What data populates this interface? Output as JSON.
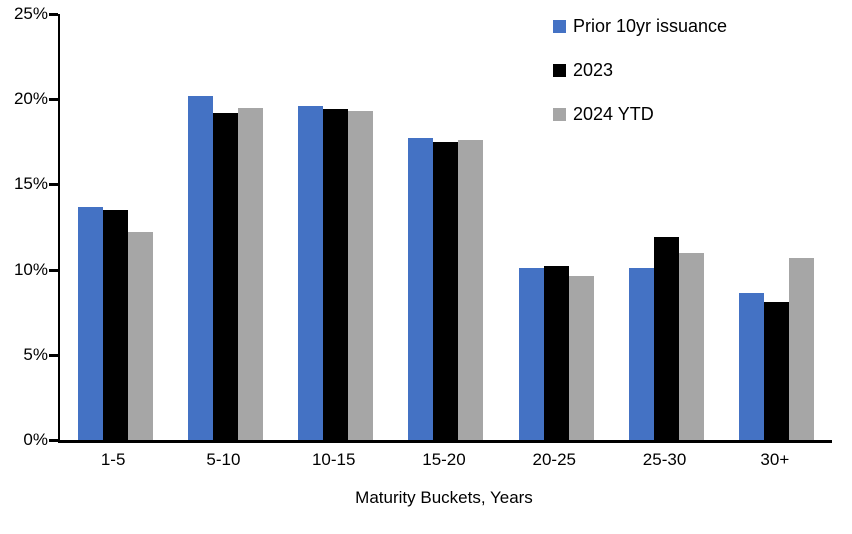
{
  "chart_data": {
    "type": "bar",
    "title": "",
    "categories": [
      "1-5",
      "5-10",
      "10-15",
      "15-20",
      "20-25",
      "25-30",
      "30+"
    ],
    "series": [
      {
        "name": "Prior 10yr issuance",
        "color": "#4472C4",
        "values": [
          13.7,
          20.2,
          19.6,
          17.7,
          10.1,
          10.1,
          8.6
        ]
      },
      {
        "name": "2023",
        "color": "#000000",
        "values": [
          13.5,
          19.2,
          19.4,
          17.5,
          10.2,
          11.9,
          8.1
        ]
      },
      {
        "name": "2024 YTD",
        "color": "#A6A6A6",
        "values": [
          12.2,
          19.5,
          19.3,
          17.6,
          9.6,
          11.0,
          10.7
        ]
      }
    ],
    "xlabel": "Maturity Buckets, Years",
    "ylabel": "",
    "ylim": [
      0,
      25
    ],
    "yticks": [
      "0%",
      "5%",
      "10%",
      "15%",
      "20%",
      "25%"
    ],
    "grid": false,
    "legend_position": "top-right",
    "axis_color": "#000000",
    "background_color": "#FFFFFF"
  }
}
